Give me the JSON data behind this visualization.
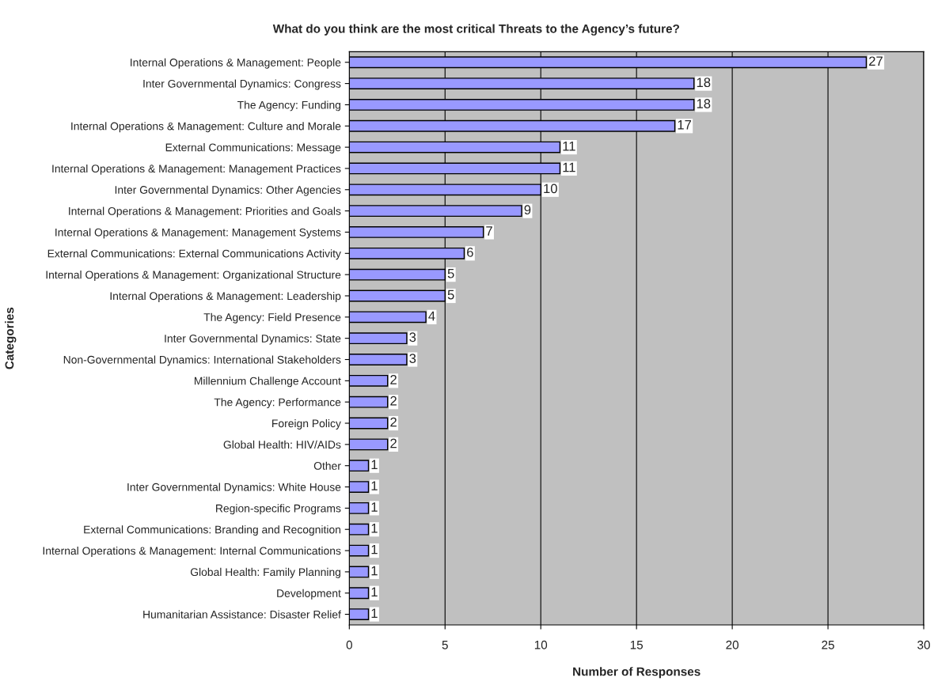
{
  "chart_data": {
    "type": "bar",
    "orientation": "horizontal",
    "title": "What do you think are the most critical Threats to the Agency’s future?",
    "xlabel": "Number of Responses",
    "ylabel": "Categories",
    "categories": [
      "Internal Operations & Management: People",
      "Inter Governmental Dynamics: Congress",
      "The Agency: Funding",
      "Internal Operations & Management: Culture and Morale",
      "External Communications: Message",
      "Internal Operations & Management: Management Practices",
      "Inter Governmental Dynamics: Other Agencies",
      "Internal Operations & Management: Priorities and Goals",
      "Internal Operations & Management: Management Systems",
      "External Communications: External Communications Activity",
      "Internal Operations & Management: Organizational Structure",
      "Internal Operations & Management: Leadership",
      "The Agency: Field Presence",
      "Inter Governmental Dynamics: State",
      "Non-Governmental Dynamics: International Stakeholders",
      "Millennium Challenge Account",
      "The Agency: Performance",
      "Foreign Policy",
      "Global Health: HIV/AIDs",
      "Other",
      "Inter Governmental Dynamics: White House",
      "Region-specific Programs",
      "External Communications: Branding and Recognition",
      "Internal Operations & Management: Internal Communications",
      "Global Health: Family Planning",
      "Development",
      "Humanitarian Assistance: Disaster Relief"
    ],
    "values": [
      27,
      18,
      18,
      17,
      11,
      11,
      10,
      9,
      7,
      6,
      5,
      5,
      4,
      3,
      3,
      2,
      2,
      2,
      2,
      1,
      1,
      1,
      1,
      1,
      1,
      1,
      1
    ],
    "color": "#9999ff",
    "xlim": [
      0,
      30
    ],
    "xticks": [
      0,
      5,
      10,
      15,
      20,
      25,
      30
    ],
    "grid": "x",
    "data_labels": true,
    "legend": false
  }
}
